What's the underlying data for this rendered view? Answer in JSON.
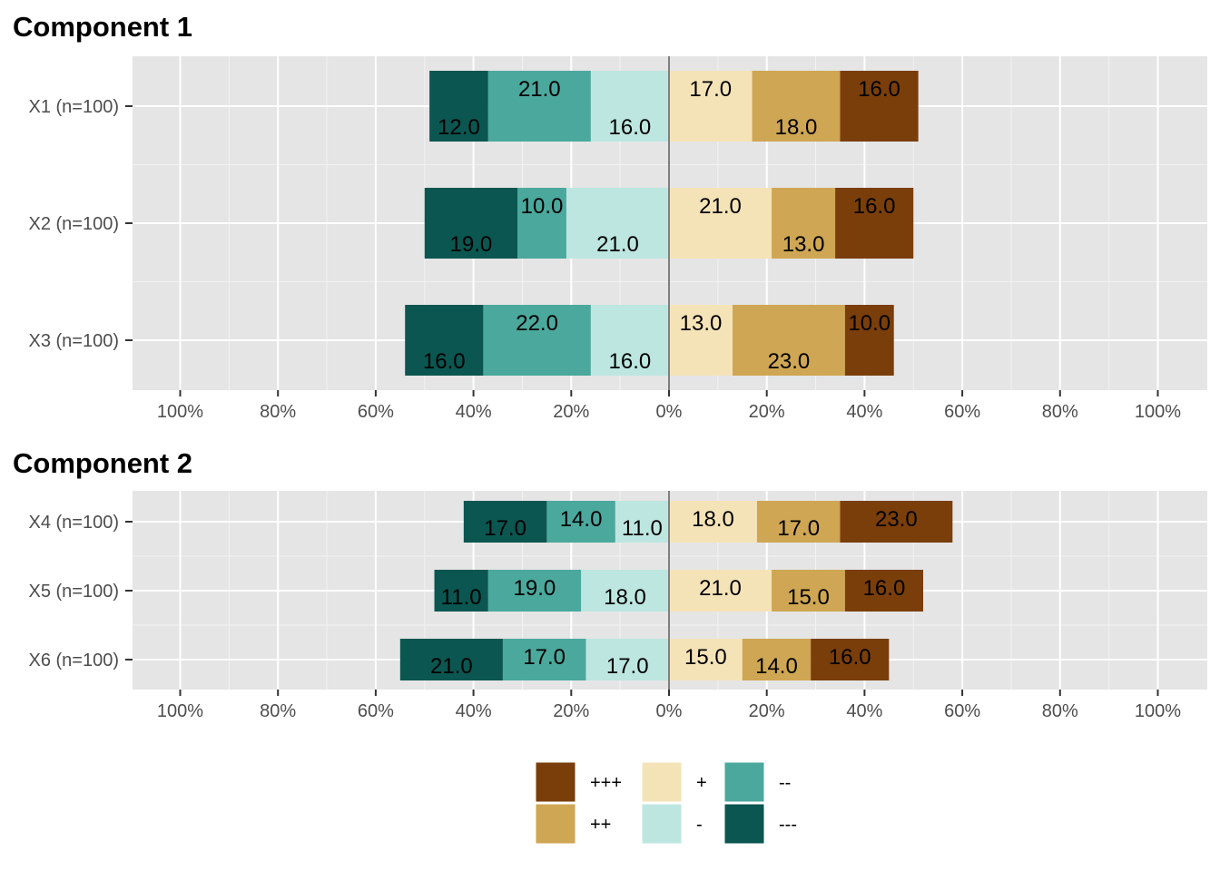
{
  "legend": {
    "items": [
      {
        "label": "+++",
        "color": "#7a3e0a"
      },
      {
        "label": "++",
        "color": "#cfa653"
      },
      {
        "label": "+",
        "color": "#f5e3b8"
      },
      {
        "label": "-",
        "color": "#bde6e0"
      },
      {
        "label": "--",
        "color": "#4ba89d"
      },
      {
        "label": "---",
        "color": "#0b5650"
      }
    ]
  },
  "chart_data": [
    {
      "type": "bar",
      "orientation": "horizontal-diverging",
      "title": "Component 1",
      "categories": [
        "X1 (n=100)",
        "X2 (n=100)",
        "X3 (n=100)"
      ],
      "xlim": [
        -100,
        100
      ],
      "x_ticks": [
        -100,
        -80,
        -60,
        -40,
        -20,
        0,
        20,
        40,
        60,
        80,
        100
      ],
      "x_tick_labels": [
        "100%",
        "80%",
        "60%",
        "40%",
        "20%",
        "0%",
        "20%",
        "40%",
        "60%",
        "80%",
        "100%"
      ],
      "grid": true,
      "series": [
        {
          "name": "---",
          "color": "#0b5650",
          "values": [
            12.0,
            19.0,
            16.0
          ]
        },
        {
          "name": "--",
          "color": "#4ba89d",
          "values": [
            21.0,
            10.0,
            22.0
          ]
        },
        {
          "name": "-",
          "color": "#bde6e0",
          "values": [
            16.0,
            21.0,
            16.0
          ]
        },
        {
          "name": "+",
          "color": "#f5e3b8",
          "values": [
            17.0,
            21.0,
            13.0
          ]
        },
        {
          "name": "++",
          "color": "#cfa653",
          "values": [
            18.0,
            13.0,
            23.0
          ]
        },
        {
          "name": "+++",
          "color": "#7a3e0a",
          "values": [
            16.0,
            16.0,
            10.0
          ]
        }
      ]
    },
    {
      "type": "bar",
      "orientation": "horizontal-diverging",
      "title": "Component 2",
      "categories": [
        "X4 (n=100)",
        "X5 (n=100)",
        "X6 (n=100)"
      ],
      "xlim": [
        -100,
        100
      ],
      "x_ticks": [
        -100,
        -80,
        -60,
        -40,
        -20,
        0,
        20,
        40,
        60,
        80,
        100
      ],
      "x_tick_labels": [
        "100%",
        "80%",
        "60%",
        "40%",
        "20%",
        "0%",
        "20%",
        "40%",
        "60%",
        "80%",
        "100%"
      ],
      "grid": true,
      "series": [
        {
          "name": "---",
          "color": "#0b5650",
          "values": [
            17.0,
            11.0,
            21.0
          ]
        },
        {
          "name": "--",
          "color": "#4ba89d",
          "values": [
            14.0,
            19.0,
            17.0
          ]
        },
        {
          "name": "-",
          "color": "#bde6e0",
          "values": [
            11.0,
            18.0,
            17.0
          ]
        },
        {
          "name": "+",
          "color": "#f5e3b8",
          "values": [
            18.0,
            21.0,
            15.0
          ]
        },
        {
          "name": "++",
          "color": "#cfa653",
          "values": [
            17.0,
            15.0,
            14.0
          ]
        },
        {
          "name": "+++",
          "color": "#7a3e0a",
          "values": [
            23.0,
            16.0,
            16.0
          ]
        }
      ]
    }
  ]
}
